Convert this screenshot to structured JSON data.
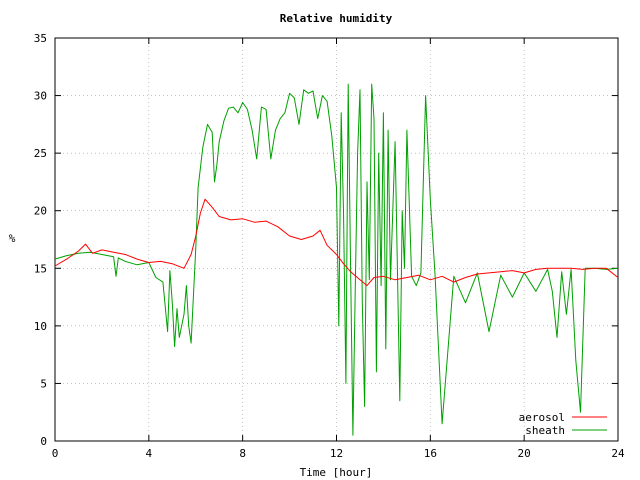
{
  "chart_data": {
    "type": "line",
    "title": "Relative humidity",
    "xlabel": "Time [hour]",
    "ylabel": "%",
    "xlim": [
      0,
      24
    ],
    "ylim": [
      0,
      35
    ],
    "xticks": [
      0,
      4,
      8,
      12,
      16,
      20,
      24
    ],
    "yticks": [
      0,
      5,
      10,
      15,
      20,
      25,
      30,
      35
    ],
    "grid": true,
    "legend_position": "bottom-right",
    "series": [
      {
        "name": "aerosol",
        "color": "#ff0000",
        "x": [
          0,
          0.5,
          1.0,
          1.3,
          1.6,
          2.0,
          2.5,
          3.0,
          3.5,
          4.0,
          4.5,
          5.0,
          5.5,
          5.8,
          6.0,
          6.2,
          6.4,
          6.7,
          7.0,
          7.5,
          8.0,
          8.5,
          9.0,
          9.5,
          10.0,
          10.5,
          11.0,
          11.3,
          11.6,
          12.0,
          12.3,
          12.6,
          13.0,
          13.3,
          13.6,
          14.0,
          14.5,
          15.0,
          15.5,
          16.0,
          16.5,
          17.0,
          17.5,
          18.0,
          18.5,
          19.0,
          19.5,
          20.0,
          20.5,
          21.0,
          21.5,
          22.0,
          22.5,
          23.0,
          23.5,
          24.0
        ],
        "y": [
          15.2,
          15.8,
          16.5,
          17.1,
          16.3,
          16.6,
          16.4,
          16.2,
          15.8,
          15.5,
          15.6,
          15.4,
          15.0,
          16.2,
          17.8,
          19.8,
          21.0,
          20.3,
          19.5,
          19.2,
          19.3,
          19.0,
          19.1,
          18.6,
          17.8,
          17.5,
          17.8,
          18.3,
          17.0,
          16.2,
          15.4,
          14.7,
          14.0,
          13.5,
          14.2,
          14.3,
          14.0,
          14.2,
          14.4,
          14.0,
          14.3,
          13.8,
          14.2,
          14.5,
          14.6,
          14.7,
          14.8,
          14.6,
          14.9,
          15.0,
          15.0,
          15.0,
          14.9,
          15.0,
          15.0,
          14.2
        ]
      },
      {
        "name": "sheath",
        "color": "#00a000",
        "x": [
          0,
          0.5,
          1.0,
          1.5,
          2.0,
          2.5,
          2.6,
          2.7,
          3.0,
          3.5,
          4.0,
          4.3,
          4.6,
          4.8,
          4.9,
          5.0,
          5.1,
          5.2,
          5.3,
          5.5,
          5.6,
          5.7,
          5.8,
          6.0,
          6.1,
          6.3,
          6.5,
          6.7,
          6.8,
          6.9,
          7.0,
          7.2,
          7.4,
          7.6,
          7.8,
          8.0,
          8.2,
          8.4,
          8.6,
          8.8,
          9.0,
          9.2,
          9.4,
          9.6,
          9.8,
          10.0,
          10.2,
          10.4,
          10.6,
          10.8,
          11.0,
          11.2,
          11.4,
          11.6,
          11.8,
          12.0,
          12.1,
          12.2,
          12.3,
          12.4,
          12.5,
          12.6,
          12.7,
          12.8,
          12.9,
          13.0,
          13.1,
          13.2,
          13.3,
          13.4,
          13.5,
          13.6,
          13.7,
          13.8,
          13.9,
          14.0,
          14.1,
          14.2,
          14.3,
          14.4,
          14.5,
          14.6,
          14.7,
          14.8,
          14.9,
          15.0,
          15.2,
          15.4,
          15.6,
          15.8,
          16.0,
          16.2,
          16.5,
          17.0,
          17.5,
          18.0,
          18.5,
          19.0,
          19.5,
          20.0,
          20.5,
          21.0,
          21.2,
          21.4,
          21.6,
          21.8,
          22.0,
          22.2,
          22.4,
          22.6,
          23.0,
          23.5,
          24.0
        ],
        "y": [
          15.8,
          16.1,
          16.3,
          16.4,
          16.2,
          16.0,
          14.3,
          15.9,
          15.6,
          15.3,
          15.5,
          14.2,
          13.8,
          9.5,
          14.8,
          12.0,
          8.2,
          11.5,
          9.0,
          11.0,
          13.5,
          10.0,
          8.5,
          16.8,
          22.0,
          25.5,
          27.5,
          26.8,
          22.5,
          24.0,
          26.0,
          27.8,
          28.9,
          29.0,
          28.5,
          29.4,
          28.8,
          27.0,
          24.5,
          29.0,
          28.8,
          24.5,
          27.0,
          28.0,
          28.5,
          30.2,
          29.8,
          27.5,
          30.5,
          30.2,
          30.4,
          28.0,
          30.0,
          29.5,
          26.5,
          22.0,
          10.0,
          28.5,
          20.0,
          5.0,
          31.0,
          15.0,
          0.5,
          13.5,
          25.0,
          30.5,
          12.0,
          3.0,
          22.5,
          14.0,
          31.0,
          28.0,
          6.0,
          25.0,
          13.5,
          28.5,
          8.0,
          27.0,
          14.0,
          20.0,
          26.0,
          14.5,
          3.5,
          20.0,
          15.0,
          27.0,
          14.3,
          13.5,
          14.6,
          30.0,
          21.0,
          14.5,
          1.5,
          14.3,
          12.0,
          14.6,
          9.5,
          14.4,
          12.5,
          14.6,
          13.0,
          14.9,
          13.0,
          9.0,
          14.7,
          11.0,
          14.9,
          7.0,
          2.5,
          15.0,
          15.0,
          14.9,
          15.0
        ]
      }
    ]
  }
}
